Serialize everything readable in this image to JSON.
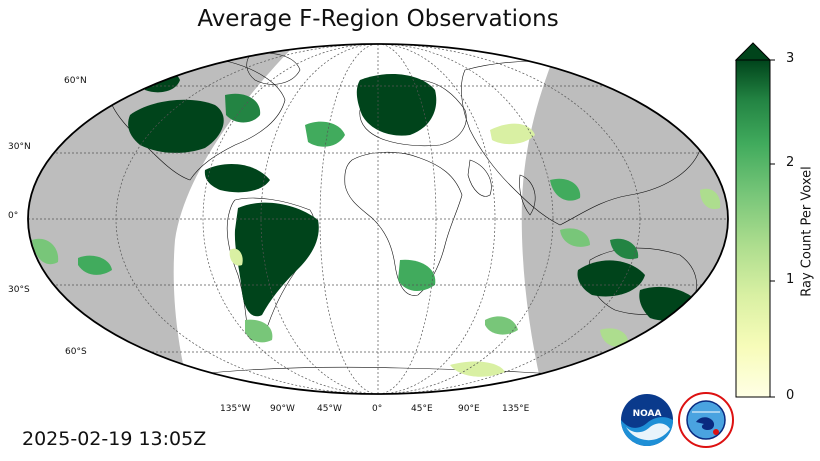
{
  "title": "Average F-Region Observations",
  "timestamp": "2025-02-19 13:05Z",
  "colorbar": {
    "label": "Ray Count Per Voxel",
    "ticks": [
      "0",
      "1",
      "2",
      "3"
    ],
    "min": 0,
    "max": 3,
    "colors": {
      "low": "#ffffe5",
      "mid": "#78c679",
      "high": "#00441b"
    }
  },
  "grid": {
    "lat_labels": [
      "60°N",
      "30°N",
      "0°",
      "30°S",
      "60°S"
    ],
    "lon_labels": [
      "135°W",
      "90°W",
      "45°W",
      "0°",
      "45°E",
      "90°E",
      "135°E"
    ]
  },
  "colors": {
    "night": "#bdbdbd",
    "day": "#ffffff",
    "obs_dense": "#00441b"
  },
  "logos": {
    "noaa": "noaa-logo",
    "nws": "national-weather-service-logo"
  }
}
